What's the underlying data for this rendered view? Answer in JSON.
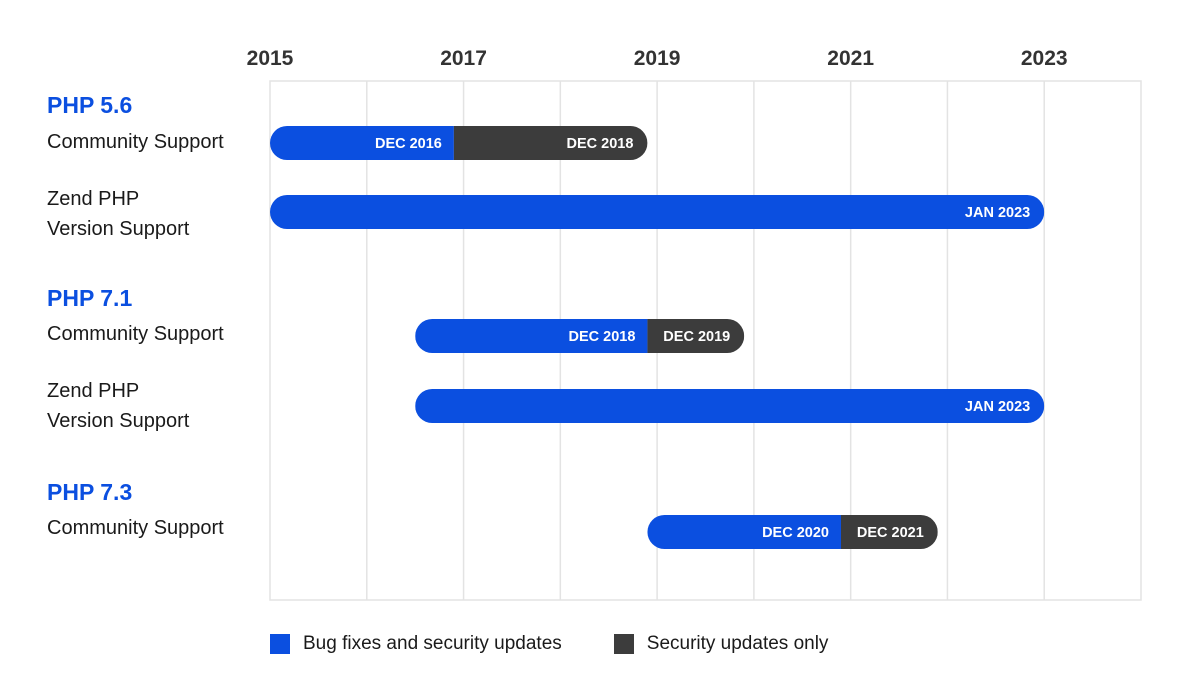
{
  "chart_data": {
    "type": "bar",
    "subtype": "timeline",
    "x_ticks": [
      "2015",
      "2017",
      "2019",
      "2021",
      "2023"
    ],
    "xlim": [
      2015.0,
      2024.0
    ],
    "grid": true,
    "legend": {
      "placement": "bottom-left",
      "items": [
        {
          "label": "Bug fixes and security updates",
          "color": "#0b4fe0"
        },
        {
          "label": "Security updates only",
          "color": "#3c3c3c"
        }
      ]
    },
    "groups": [
      {
        "title": "PHP 5.6",
        "rows": [
          {
            "label": "Community Support",
            "segments": [
              {
                "kind": "bug",
                "start": 2015.0,
                "end": 2016.9,
                "label": "DEC 2016"
              },
              {
                "kind": "security",
                "start": 2016.9,
                "end": 2018.9,
                "label": "DEC 2018"
              }
            ]
          },
          {
            "label": "Zend PHP\nVersion Support",
            "segments": [
              {
                "kind": "bug",
                "start": 2015.0,
                "end": 2023.0,
                "label": "JAN 2023"
              }
            ]
          }
        ]
      },
      {
        "title": "PHP 7.1",
        "rows": [
          {
            "label": "Community Support",
            "segments": [
              {
                "kind": "bug",
                "start": 2016.5,
                "end": 2018.9,
                "label": "DEC 2018"
              },
              {
                "kind": "security",
                "start": 2018.9,
                "end": 2019.9,
                "label": "DEC 2019"
              }
            ]
          },
          {
            "label": "Zend PHP\nVersion Support",
            "segments": [
              {
                "kind": "bug",
                "start": 2016.5,
                "end": 2023.0,
                "label": "JAN 2023"
              }
            ]
          }
        ]
      },
      {
        "title": "PHP 7.3",
        "rows": [
          {
            "label": "Community Support",
            "segments": [
              {
                "kind": "bug",
                "start": 2018.9,
                "end": 2020.9,
                "label": "DEC 2020"
              },
              {
                "kind": "security",
                "start": 2020.9,
                "end": 2021.9,
                "label": "DEC 2021"
              }
            ]
          }
        ]
      }
    ]
  },
  "colors": {
    "bug": "#0b4fe0",
    "security": "#3c3c3c",
    "grid": "#e3e3e3",
    "title": "#0b4fe0"
  }
}
